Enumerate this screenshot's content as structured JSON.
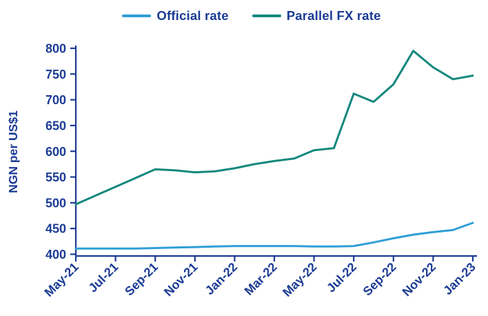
{
  "legend": {
    "items": [
      {
        "label": "Official rate",
        "color": "#2f9fd6"
      },
      {
        "label": "Parallel FX rate",
        "color": "#13887e"
      }
    ]
  },
  "chart_data": {
    "type": "line",
    "title": "",
    "xlabel": "",
    "ylabel": "NGN per US$1",
    "x": [
      "May-21",
      "Jun-21",
      "Jul-21",
      "Aug-21",
      "Sep-21",
      "Oct-21",
      "Nov-21",
      "Dec-21",
      "Jan-22",
      "Feb-22",
      "Mar-22",
      "Apr-22",
      "May-22",
      "Jun-22",
      "Jul-22",
      "Aug-22",
      "Sep-22",
      "Oct-22",
      "Nov-22",
      "Dec-22",
      "Jan-23"
    ],
    "xtick_labels": [
      "May-21",
      "Jul-21",
      "Sep-21",
      "Nov-21",
      "Jan-22",
      "Mar-22",
      "May-22",
      "Jul-22",
      "Sep-22",
      "Nov-22",
      "Jan-23"
    ],
    "xtick_every": 2,
    "series": [
      {
        "name": "Official rate",
        "color": "#2f9fd6",
        "values": [
          411,
          411,
          411,
          411,
          412,
          413,
          414,
          415,
          416,
          416,
          416,
          416,
          415,
          415,
          416,
          423,
          431,
          438,
          443,
          447,
          461
        ]
      },
      {
        "name": "Parallel FX rate",
        "color": "#13887e",
        "values": [
          497,
          514,
          531,
          548,
          565,
          563,
          559,
          561,
          567,
          575,
          581,
          586,
          602,
          606,
          712,
          696,
          730,
          795,
          763,
          740,
          747
        ]
      }
    ],
    "ylim": [
      400,
      800
    ],
    "ytick_step": 50,
    "grid": false,
    "legend_position": "top",
    "axis_color": "#1b3b94",
    "styles": {
      "tick_font_px": 18,
      "xlabel_rotation_deg": -45,
      "line_width": 3,
      "axis_width": 2.2
    }
  }
}
